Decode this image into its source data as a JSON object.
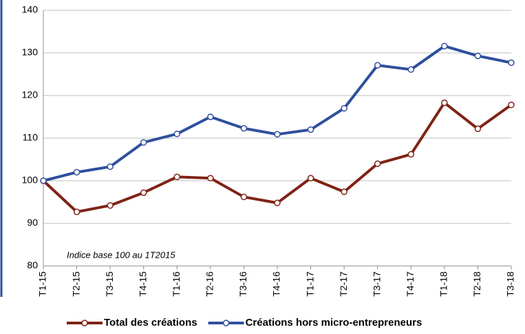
{
  "chart_data": {
    "type": "line",
    "annotation": "Indice base 100 au 1T2015",
    "categories": [
      "T1-15",
      "T2-15",
      "T3-15",
      "T4-15",
      "T1-16",
      "T2-16",
      "T3-16",
      "T4-16",
      "T1-17",
      "T2-17",
      "T3-17",
      "T4-17",
      "T1-18",
      "T2-18",
      "T3-18"
    ],
    "series": [
      {
        "name": "Total des créations",
        "color": "#7f2315",
        "values": [
          100,
          92.7,
          94.2,
          97.2,
          100.9,
          100.6,
          96.2,
          94.8,
          100.6,
          97.4,
          104,
          106.2,
          118.3,
          112.2,
          117.8
        ]
      },
      {
        "name": "Créations hors micro-entrepreneurs",
        "color": "#2e4f9e",
        "values": [
          100,
          102,
          103.3,
          109,
          111,
          115,
          112.3,
          110.9,
          112,
          117,
          127.1,
          126.1,
          131.6,
          129.3,
          127.7
        ]
      }
    ],
    "ylim": [
      80,
      140
    ],
    "yticks": [
      80,
      90,
      100,
      110,
      120,
      130,
      140
    ],
    "grid": true,
    "legend": "bottom"
  }
}
